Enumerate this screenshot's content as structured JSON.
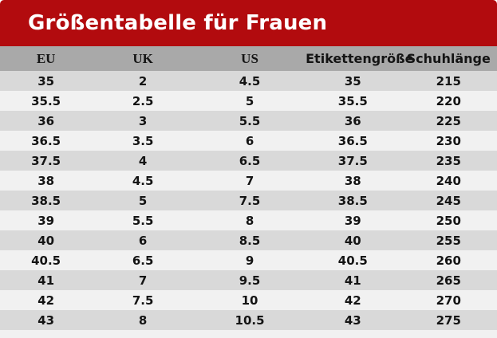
{
  "title": "Größentabelle für Frauen",
  "table": {
    "columns": [
      {
        "key": "eu",
        "label": "EU",
        "style": "serif"
      },
      {
        "key": "uk",
        "label": "UK",
        "style": "serif"
      },
      {
        "key": "us",
        "label": "US",
        "style": "serif"
      },
      {
        "key": "etikettengroesse",
        "label": "Etikettengröße",
        "style": "sans"
      },
      {
        "key": "schuhlaenge",
        "label": "Schuhlänge",
        "style": "sans"
      }
    ],
    "rows": [
      [
        "35",
        "2",
        "4.5",
        "35",
        "215"
      ],
      [
        "35.5",
        "2.5",
        "5",
        "35.5",
        "220"
      ],
      [
        "36",
        "3",
        "5.5",
        "36",
        "225"
      ],
      [
        "36.5",
        "3.5",
        "6",
        "36.5",
        "230"
      ],
      [
        "37.5",
        "4",
        "6.5",
        "37.5",
        "235"
      ],
      [
        "38",
        "4.5",
        "7",
        "38",
        "240"
      ],
      [
        "38.5",
        "5",
        "7.5",
        "38.5",
        "245"
      ],
      [
        "39",
        "5.5",
        "8",
        "39",
        "250"
      ],
      [
        "40",
        "6",
        "8.5",
        "40",
        "255"
      ],
      [
        "40.5",
        "6.5",
        "9",
        "40.5",
        "260"
      ],
      [
        "41",
        "7",
        "9.5",
        "41",
        "265"
      ],
      [
        "42",
        "7.5",
        "10",
        "42",
        "270"
      ],
      [
        "43",
        "8",
        "10.5",
        "43",
        "275"
      ]
    ]
  },
  "colors": {
    "banner": "#b20b0e",
    "title_text": "#ffffff",
    "header_bg": "#a9a9a9",
    "row_odd": "#d9d9d9",
    "row_even": "#f1f1f1",
    "page_bg": "#f1f1f1",
    "text": "#141414"
  }
}
